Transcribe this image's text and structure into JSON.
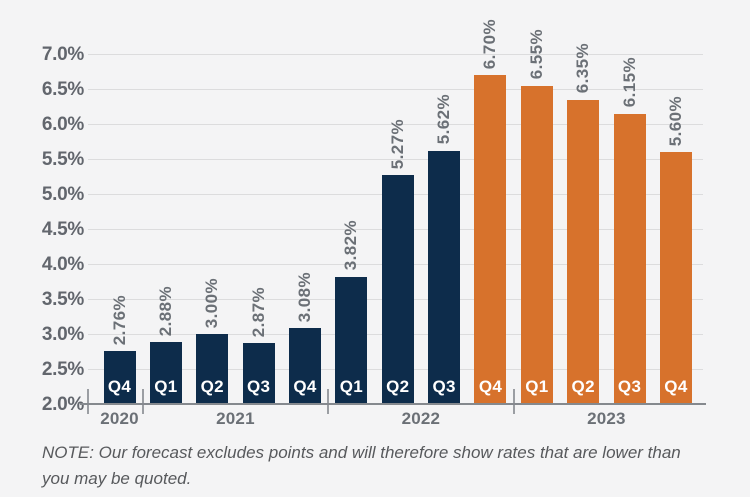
{
  "note": {
    "text": "NOTE: Our forecast excludes points and will therefore show rates that are lower than you may be quoted."
  },
  "chart_data": {
    "type": "bar",
    "title": "",
    "xlabel": "",
    "ylabel": "",
    "ylim": [
      2.0,
      7.0
    ],
    "ytick_step": 0.5,
    "grid": true,
    "legend_position": "none",
    "yticks": [
      {
        "value": 7.0,
        "label": "7.0%"
      },
      {
        "value": 6.5,
        "label": "6.5%"
      },
      {
        "value": 6.0,
        "label": "6.0%"
      },
      {
        "value": 5.5,
        "label": "5.5%"
      },
      {
        "value": 5.0,
        "label": "5.0%"
      },
      {
        "value": 4.5,
        "label": "4.5%"
      },
      {
        "value": 4.0,
        "label": "4.0%"
      },
      {
        "value": 3.5,
        "label": "3.5%"
      },
      {
        "value": 3.0,
        "label": "3.0%"
      },
      {
        "value": 2.5,
        "label": "2.5%"
      },
      {
        "value": 2.0,
        "label": "2.0%"
      }
    ],
    "series_colors": {
      "actual": "#0d2c4b",
      "forecast": "#d7722c"
    },
    "groups": [
      {
        "year": "2020",
        "bars": [
          {
            "quarter": "Q4",
            "value": 2.76,
            "display": "2.76%",
            "series": "actual"
          }
        ]
      },
      {
        "year": "2021",
        "bars": [
          {
            "quarter": "Q1",
            "value": 2.88,
            "display": "2.88%",
            "series": "actual"
          },
          {
            "quarter": "Q2",
            "value": 3.0,
            "display": "3.00%",
            "series": "actual"
          },
          {
            "quarter": "Q3",
            "value": 2.87,
            "display": "2.87%",
            "series": "actual"
          },
          {
            "quarter": "Q4",
            "value": 3.08,
            "display": "3.08%",
            "series": "actual"
          }
        ]
      },
      {
        "year": "2022",
        "bars": [
          {
            "quarter": "Q1",
            "value": 3.82,
            "display": "3.82%",
            "series": "actual"
          },
          {
            "quarter": "Q2",
            "value": 5.27,
            "display": "5.27%",
            "series": "actual"
          },
          {
            "quarter": "Q3",
            "value": 5.62,
            "display": "5.62%",
            "series": "actual"
          },
          {
            "quarter": "Q4",
            "value": 6.7,
            "display": "6.70%",
            "series": "forecast"
          }
        ]
      },
      {
        "year": "2023",
        "bars": [
          {
            "quarter": "Q1",
            "value": 6.55,
            "display": "6.55%",
            "series": "forecast"
          },
          {
            "quarter": "Q2",
            "value": 6.35,
            "display": "6.35%",
            "series": "forecast"
          },
          {
            "quarter": "Q3",
            "value": 6.15,
            "display": "6.15%",
            "series": "forecast"
          },
          {
            "quarter": "Q4",
            "value": 5.6,
            "display": "5.60%",
            "series": "forecast"
          }
        ]
      }
    ]
  }
}
